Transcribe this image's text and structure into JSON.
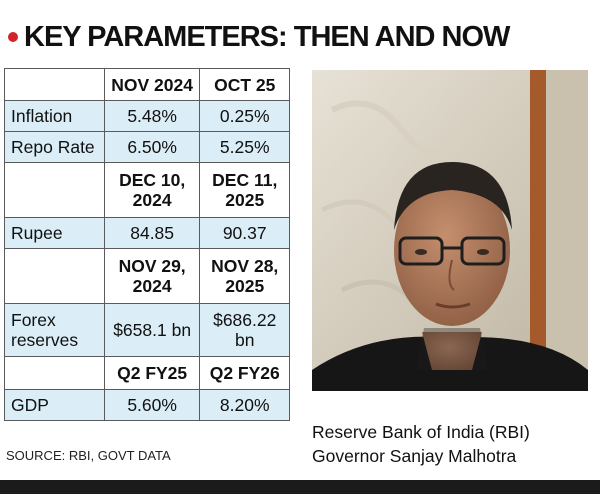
{
  "headline": "KEY PARAMETERS: THEN AND NOW",
  "colors": {
    "bullet": "#d2232a",
    "row_fill": "#dbeef7",
    "header_fill": "#ffffff"
  },
  "table": {
    "header_1": {
      "label": "",
      "col1": "NOV 2024",
      "col2": "OCT 25"
    },
    "inflation": {
      "label": "Inflation",
      "col1": "5.48%",
      "col2": "0.25%"
    },
    "repo": {
      "label": "Repo Rate",
      "col1": "6.50%",
      "col2": "5.25%"
    },
    "header_2": {
      "label": "",
      "col1": "DEC 10, 2024",
      "col2": "DEC 11, 2025"
    },
    "rupee": {
      "label": "Rupee",
      "col1": "84.85",
      "col2": "90.37"
    },
    "header_3": {
      "label": "",
      "col1": "NOV 29, 2024",
      "col2": "NOV 28, 2025"
    },
    "forex": {
      "label": "Forex reserves",
      "col1": "$658.1 bn",
      "col2": "$686.22 bn"
    },
    "header_4": {
      "label": "",
      "col1": "Q2 FY25",
      "col2": "Q2 FY26"
    },
    "gdp": {
      "label": "GDP",
      "col1": "5.60%",
      "col2": "8.20%"
    }
  },
  "photo": {
    "icon": "portrait-photo"
  },
  "caption": {
    "line1": "Reserve Bank of India (RBI)",
    "line2": "Governor Sanjay Malhotra"
  },
  "source": "SOURCE: RBI, GOVT DATA"
}
